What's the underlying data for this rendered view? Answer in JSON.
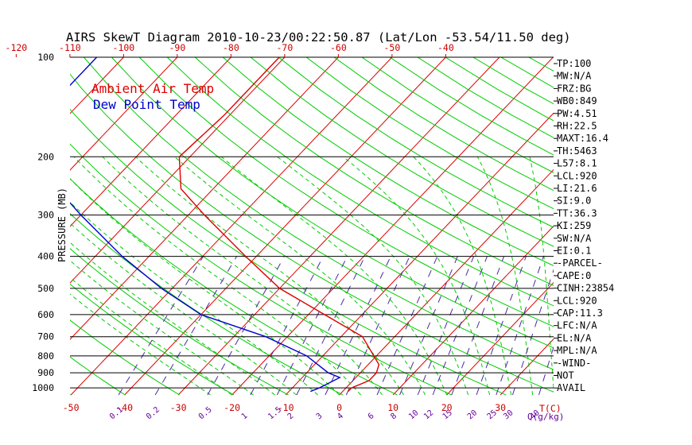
{
  "chart_data": {
    "type": "line",
    "title": "AIRS SkewT Diagram 2010-10-23/00:22:50.87 (Lat/Lon -53.54/11.50 deg)",
    "ylabel": "PRESSURE (MB)",
    "pressure_ticks": [
      100,
      200,
      300,
      400,
      500,
      600,
      700,
      800,
      900,
      1000
    ],
    "top_temp_ticks": [
      "-120",
      "-110",
      "-100",
      "-90",
      "-80",
      "-70",
      "-60",
      "-50",
      "-40"
    ],
    "bottom_temp_ticks": [
      "-50",
      "-40",
      "-30",
      "-20",
      "-10",
      "0",
      "10",
      "20",
      "30"
    ],
    "bottom_temp_unit": "T(C)",
    "mixing_ratio_labels": [
      "0.1",
      "0.2",
      "0.5",
      "1",
      "1.5",
      "2",
      "3",
      "4",
      "6",
      "8",
      "10",
      "12",
      "15",
      "20",
      "25",
      "30",
      "40"
    ],
    "mixing_ratio_unit": "Q(g/kg)",
    "legend": [
      "Ambient Air Temp",
      "Dew Point Temp"
    ],
    "series": [
      {
        "name": "Ambient Air Temp",
        "color": "#dd0000",
        "points": [
          {
            "p": 100,
            "t": -71
          },
          {
            "p": 150,
            "t": -71
          },
          {
            "p": 200,
            "t": -72
          },
          {
            "p": 250,
            "t": -66
          },
          {
            "p": 300,
            "t": -57
          },
          {
            "p": 400,
            "t": -42
          },
          {
            "p": 500,
            "t": -30
          },
          {
            "p": 600,
            "t": -17
          },
          {
            "p": 700,
            "t": -6
          },
          {
            "p": 850,
            "t": 2
          },
          {
            "p": 900,
            "t": 3
          },
          {
            "p": 950,
            "t": 3
          },
          {
            "p": 1000,
            "t": 1
          },
          {
            "p": 1025,
            "t": 1
          }
        ]
      },
      {
        "name": "Dew Point Temp",
        "color": "#0000cc",
        "points": [
          {
            "p": 100,
            "t": -105
          },
          {
            "p": 150,
            "t": -105
          },
          {
            "p": 200,
            "t": -100
          },
          {
            "p": 300,
            "t": -80
          },
          {
            "p": 400,
            "t": -65
          },
          {
            "p": 500,
            "t": -52
          },
          {
            "p": 600,
            "t": -40
          },
          {
            "p": 700,
            "t": -24
          },
          {
            "p": 800,
            "t": -13
          },
          {
            "p": 900,
            "t": -6
          },
          {
            "p": 930,
            "t": -3
          },
          {
            "p": 1000,
            "t": -5
          },
          {
            "p": 1025,
            "t": -6
          }
        ]
      }
    ],
    "indices": [
      "TP:100",
      "MW:N/A",
      "FRZ:BG",
      "WB0:849",
      "PW:4.51",
      "RH:22.5",
      "MAXT:16.4",
      "TH:5463",
      "L57:8.1",
      "LCL:920",
      "LI:21.6",
      "SI:9.0",
      "TT:36.3",
      "KI:259",
      "SW:N/A",
      "EI:0.1",
      "-PARCEL-",
      "CAPE:0",
      "CINH:23854",
      "LCL:920",
      "CAP:11.3",
      "LFC:N/A",
      "EL:N/A",
      "MPL:N/A",
      "-WIND-",
      "NOT",
      "AVAIL"
    ]
  },
  "colors": {
    "isotherm": "#dd0000",
    "dry_adiabat": "#00cc00",
    "moist_adiabat": "#00cc00",
    "mixing_ratio": "#4a2aa0",
    "isobar": "#000000",
    "title": "#000000",
    "temp_tick": "#cc0000",
    "mixing_tick": "#660099"
  }
}
